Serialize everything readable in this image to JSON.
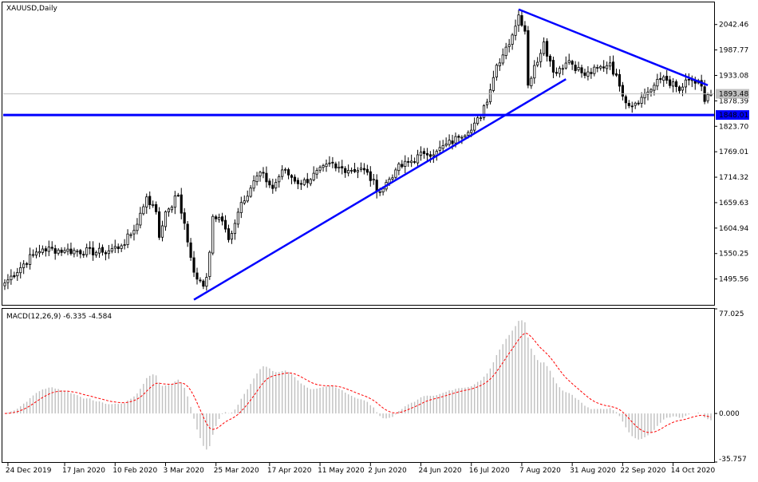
{
  "chart_data": [
    {
      "type": "candlestick",
      "title": "XAUUSD,Daily",
      "y_ticks": [
        2042.46,
        1987.77,
        1933.08,
        1878.39,
        1823.7,
        1769.01,
        1714.32,
        1659.63,
        1604.94,
        1550.25,
        1495.56
      ],
      "y_tick_labels": [
        "2042.46",
        "1987.77",
        "1933.08",
        "1878.39",
        "1823.70",
        "1769.01",
        "1714.32",
        "1659.63",
        "1604.94",
        "1550.25",
        "1495.56"
      ],
      "ylim": [
        1440,
        2090
      ],
      "current_price": 1893.48,
      "current_price_label": "1893.48",
      "horizontal_line": {
        "value": 1848.01,
        "label": "1848.01",
        "color": "#0000ff"
      },
      "x_tick_labels": [
        "24 Dec 2019",
        "17 Jan 2020",
        "10 Feb 2020",
        "3 Mar 2020",
        "25 Mar 2020",
        "17 Apr 2020",
        "11 May 2020",
        "2 Jun 2020",
        "24 Jun 2020",
        "16 Jul 2020",
        "7 Aug 2020",
        "31 Aug 2020",
        "22 Sep 2020",
        "14 Oct 2020"
      ],
      "trendlines": [
        {
          "from": [
            "2020-03-16",
            1451
          ],
          "to": [
            "2020-08-27",
            1925
          ],
          "color": "#0000ff"
        },
        {
          "from": [
            "2020-08-06",
            2075
          ],
          "to": [
            "2020-10-29",
            1912
          ],
          "color": "#0000ff"
        }
      ],
      "closes_anchors": [
        [
          "2019-12-23",
          1487
        ],
        [
          "2020-01-03",
          1548
        ],
        [
          "2020-01-08",
          1560
        ],
        [
          "2020-01-17",
          1557
        ],
        [
          "2020-02-04",
          1553
        ],
        [
          "2020-02-12",
          1567
        ],
        [
          "2020-02-18",
          1600
        ],
        [
          "2020-02-24",
          1672
        ],
        [
          "2020-02-27",
          1640
        ],
        [
          "2020-02-28",
          1585
        ],
        [
          "2020-03-03",
          1640
        ],
        [
          "2020-03-09",
          1675
        ],
        [
          "2020-03-12",
          1575
        ],
        [
          "2020-03-16",
          1510
        ],
        [
          "2020-03-19",
          1480
        ],
        [
          "2020-03-20",
          1499
        ],
        [
          "2020-03-23",
          1553
        ],
        [
          "2020-03-24",
          1630
        ],
        [
          "2020-03-27",
          1620
        ],
        [
          "2020-03-31",
          1580
        ],
        [
          "2020-04-06",
          1660
        ],
        [
          "2020-04-14",
          1725
        ],
        [
          "2020-04-20",
          1690
        ],
        [
          "2020-04-23",
          1730
        ],
        [
          "2020-05-01",
          1700
        ],
        [
          "2020-05-15",
          1745
        ],
        [
          "2020-05-18",
          1734
        ],
        [
          "2020-05-29",
          1730
        ],
        [
          "2020-06-05",
          1683
        ],
        [
          "2020-06-12",
          1730
        ],
        [
          "2020-06-25",
          1765
        ],
        [
          "2020-07-01",
          1770
        ],
        [
          "2020-07-10",
          1800
        ],
        [
          "2020-07-21",
          1842
        ],
        [
          "2020-07-24",
          1902
        ],
        [
          "2020-07-28",
          1955
        ],
        [
          "2020-08-04",
          2020
        ],
        [
          "2020-08-06",
          2063
        ],
        [
          "2020-08-10",
          2028
        ],
        [
          "2020-08-11",
          1912
        ],
        [
          "2020-08-18",
          2005
        ],
        [
          "2020-08-21",
          1940
        ],
        [
          "2020-08-28",
          1965
        ],
        [
          "2020-09-04",
          1933
        ],
        [
          "2020-09-16",
          1960
        ],
        [
          "2020-09-21",
          1910
        ],
        [
          "2020-09-24",
          1868
        ],
        [
          "2020-09-30",
          1886
        ],
        [
          "2020-10-09",
          1930
        ],
        [
          "2020-10-16",
          1900
        ],
        [
          "2020-10-21",
          1924
        ],
        [
          "2020-10-27",
          1910
        ],
        [
          "2020-10-28",
          1877
        ],
        [
          "2020-10-30",
          1893
        ]
      ]
    },
    {
      "type": "macd",
      "title": "MACD(12,26,9) -6.335 -4.584",
      "histogram_color": "#c0c0c0",
      "signal_color": "#ff0000",
      "y_tick_labels": [
        "77.025",
        "0.000",
        "-35.757"
      ],
      "ylim": [
        -35.757,
        77.025
      ]
    }
  ]
}
